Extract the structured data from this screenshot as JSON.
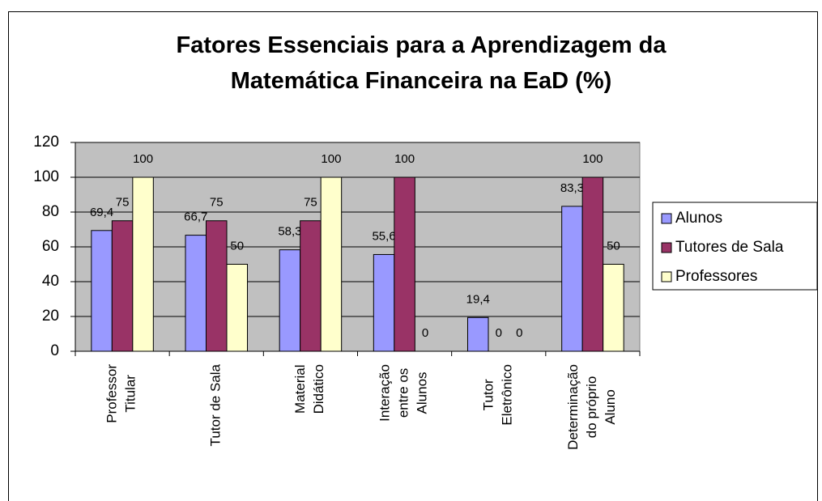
{
  "chart_data": {
    "type": "bar",
    "title": "Fatores Essenciais para a Aprendizagem da\nMatemática Financeira na EaD (%)",
    "categories": [
      "Professor\nTitular",
      "Tutor de Sala",
      "Material\nDidático",
      "Interação\nentre os\nAlunos",
      "Tutor\nEletrônico",
      "Determinação\ndo próprio\nAluno"
    ],
    "series": [
      {
        "name": "Alunos",
        "color": "#9999ff",
        "values": [
          69.4,
          66.7,
          58.3,
          55.6,
          19.4,
          83.3
        ],
        "value_labels": [
          "69,4",
          "66,7",
          "58,3",
          "55,6",
          "19,4",
          "83,3"
        ]
      },
      {
        "name": "Tutores de Sala",
        "color": "#993366",
        "values": [
          75,
          75,
          75,
          100,
          0,
          100
        ]
      },
      {
        "name": "Professores",
        "color": "#ffffcc",
        "values": [
          100,
          50,
          100,
          0,
          0,
          50
        ]
      }
    ],
    "ylim": [
      0,
      120
    ],
    "yticks": [
      0,
      20,
      40,
      60,
      80,
      100,
      120
    ],
    "grid": true,
    "legend": "right"
  }
}
